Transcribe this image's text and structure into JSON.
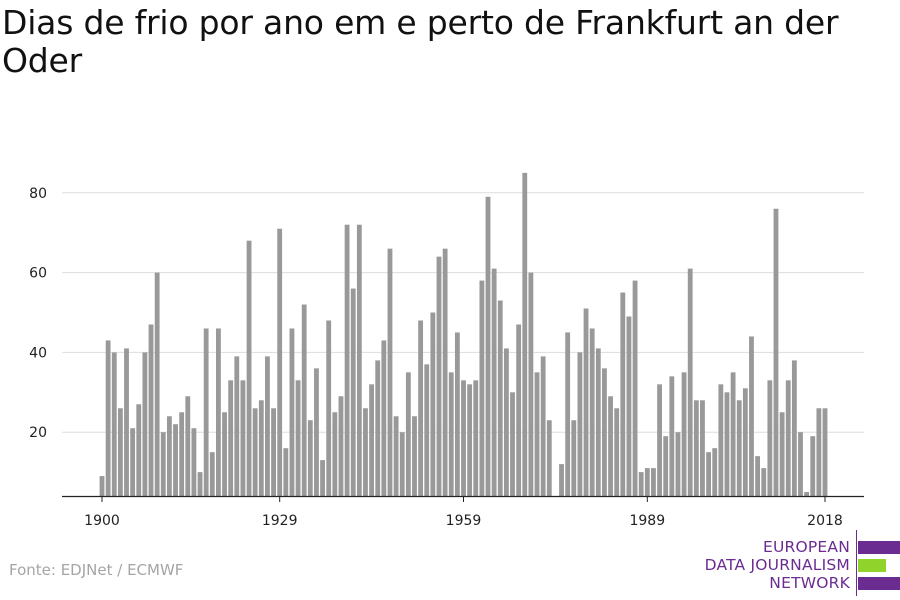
{
  "title": "Dias de frio por ano em e perto de Frankfurt an der Oder",
  "source": "Fonte: EDJNet / ECMWF",
  "logo": {
    "line1": "EUROPEAN",
    "line2": "DATA JOURNALISM",
    "line3": "NETWORK",
    "colors": {
      "purple": "#6b2c91",
      "green": "#8fd32b"
    }
  },
  "colors": {
    "bar": "#999999",
    "grid": "#dddddd",
    "axis": "#222222",
    "text": "#222222",
    "source": "#a5a5a5"
  },
  "chart_data": {
    "type": "bar",
    "title": "Dias de frio por ano em e perto de Frankfurt an der Oder",
    "xlabel": "",
    "ylabel": "",
    "x_start": 1900,
    "x_end": 2018,
    "x_ticks": [
      1900,
      1929,
      1959,
      1989,
      2018
    ],
    "y_ticks": [
      20,
      40,
      60,
      80
    ],
    "ylim": [
      4,
      87
    ],
    "grid": true,
    "categories": [
      1900,
      1901,
      1902,
      1903,
      1904,
      1905,
      1906,
      1907,
      1908,
      1909,
      1910,
      1911,
      1912,
      1913,
      1914,
      1915,
      1916,
      1917,
      1918,
      1919,
      1920,
      1921,
      1922,
      1923,
      1924,
      1925,
      1926,
      1927,
      1928,
      1929,
      1930,
      1931,
      1932,
      1933,
      1934,
      1935,
      1936,
      1937,
      1938,
      1939,
      1940,
      1941,
      1942,
      1943,
      1944,
      1945,
      1946,
      1947,
      1948,
      1949,
      1950,
      1951,
      1952,
      1953,
      1954,
      1955,
      1956,
      1957,
      1958,
      1959,
      1960,
      1961,
      1962,
      1963,
      1964,
      1965,
      1966,
      1967,
      1968,
      1969,
      1970,
      1971,
      1972,
      1973,
      1974,
      1975,
      1976,
      1977,
      1978,
      1979,
      1980,
      1981,
      1982,
      1983,
      1984,
      1985,
      1986,
      1987,
      1988,
      1989,
      1990,
      1991,
      1992,
      1993,
      1994,
      1995,
      1996,
      1997,
      1998,
      1999,
      2000,
      2001,
      2002,
      2003,
      2004,
      2005,
      2006,
      2007,
      2008,
      2009,
      2010,
      2011,
      2012,
      2013,
      2014,
      2015,
      2016,
      2017,
      2018
    ],
    "values": [
      9,
      43,
      40,
      26,
      41,
      21,
      27,
      40,
      47,
      60,
      20,
      24,
      22,
      25,
      29,
      21,
      10,
      46,
      15,
      46,
      25,
      33,
      39,
      33,
      68,
      26,
      28,
      39,
      26,
      71,
      16,
      46,
      33,
      52,
      23,
      36,
      13,
      48,
      25,
      29,
      72,
      56,
      72,
      26,
      32,
      38,
      43,
      66,
      24,
      20,
      35,
      24,
      48,
      37,
      50,
      64,
      66,
      35,
      45,
      33,
      32,
      33,
      58,
      79,
      61,
      53,
      41,
      30,
      47,
      85,
      60,
      35,
      39,
      23,
      4,
      12,
      45,
      23,
      40,
      51,
      46,
      41,
      36,
      29,
      26,
      55,
      49,
      58,
      10,
      11,
      11,
      32,
      19,
      34,
      20,
      35,
      61,
      28,
      28,
      15,
      16,
      32,
      30,
      35,
      28,
      31,
      44,
      14,
      11,
      33,
      76,
      25,
      33,
      38,
      20,
      5,
      19,
      26,
      26
    ]
  }
}
